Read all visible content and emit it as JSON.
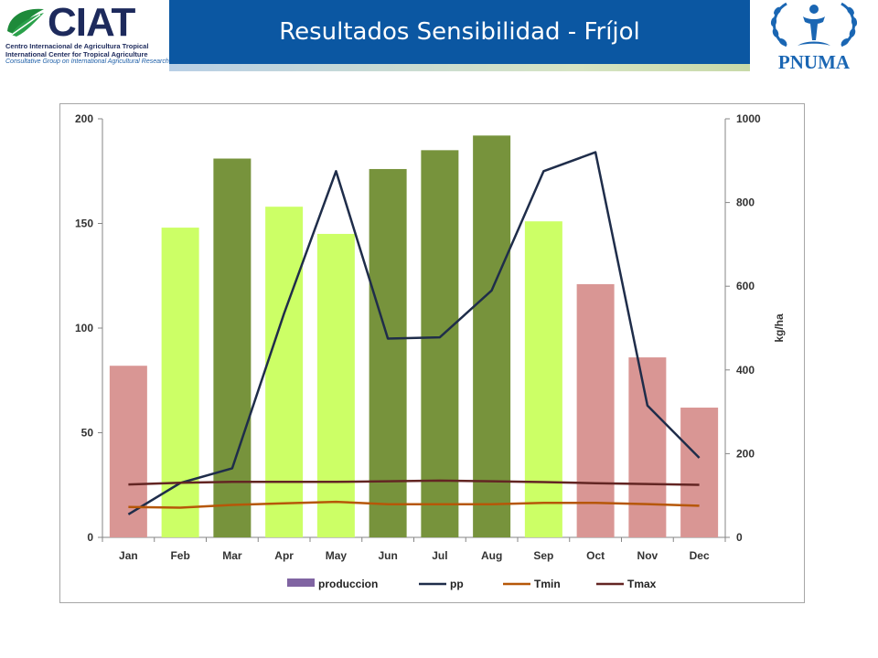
{
  "header": {
    "title": "Resultados Sensibilidad - Fríjol",
    "left_logo": {
      "name": "CIAT",
      "line1": "Centro Internacional de Agricultura Tropical",
      "line2": "International Center for Tropical Agriculture",
      "line3": "Consultative Group on International Agricultural Research"
    },
    "right_logo": {
      "name": "PNUMA"
    }
  },
  "chart_data": {
    "type": "bar",
    "categories": [
      "Jan",
      "Feb",
      "Mar",
      "Apr",
      "May",
      "Jun",
      "Jul",
      "Aug",
      "Sep",
      "Oct",
      "Nov",
      "Dec"
    ],
    "left_axis": {
      "ylim": [
        0,
        200
      ],
      "ticks": [
        0,
        50,
        100,
        150,
        200
      ]
    },
    "right_axis": {
      "ylim": [
        0,
        1000
      ],
      "ticks": [
        0,
        200,
        400,
        600,
        800,
        1000
      ],
      "label": "kg/ha"
    },
    "bar_colors": [
      "#d99694",
      "#ccff66",
      "#77933c",
      "#ccff66",
      "#ccff66",
      "#77933c",
      "#77933c",
      "#77933c",
      "#ccff66",
      "#d99694",
      "#d99694",
      "#d99694"
    ],
    "series": [
      {
        "name": "produccion",
        "type": "bar",
        "axis": "left",
        "color": "#8064a2",
        "values": [
          82,
          148,
          181,
          158,
          145,
          176,
          185,
          192,
          151,
          121,
          86,
          62
        ]
      },
      {
        "name": "pp",
        "type": "line",
        "axis": "right",
        "color": "#1f2d4a",
        "values": [
          55,
          130,
          165,
          535,
          875,
          475,
          478,
          590,
          875,
          920,
          315,
          190
        ]
      },
      {
        "name": "Tmin",
        "type": "line",
        "axis": "left",
        "color": "#b65708",
        "values": [
          14.5,
          14.2,
          15.5,
          16.3,
          17.0,
          15.8,
          15.8,
          15.8,
          16.5,
          16.5,
          15.9,
          15.1
        ]
      },
      {
        "name": "Tmax",
        "type": "line",
        "axis": "left",
        "color": "#632523",
        "values": [
          25.3,
          26.1,
          26.5,
          26.5,
          26.5,
          26.8,
          27.1,
          26.8,
          26.4,
          25.9,
          25.5,
          25.1
        ]
      }
    ],
    "legend": {
      "position": "bottom"
    }
  }
}
